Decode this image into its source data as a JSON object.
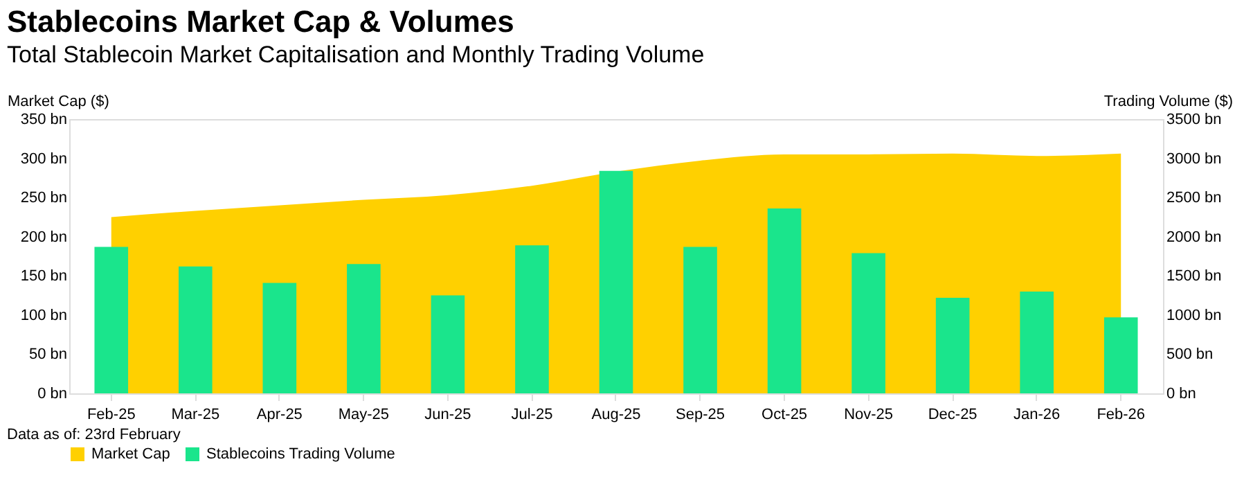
{
  "chart_data": {
    "type": "bar",
    "title": "Stablecoins Market Cap & Volumes",
    "subtitle": "Total Stablecoin Market Capitalisation and Monthly Trading Volume",
    "ylabel": "Market Cap ($)",
    "y2label": "Trading Volume ($)",
    "categories": [
      "Feb-25",
      "Mar-25",
      "Apr-25",
      "May-25",
      "Jun-25",
      "Jul-25",
      "Aug-25",
      "Sep-25",
      "Oct-25",
      "Nov-25",
      "Dec-25",
      "Jan-26",
      "Feb-26"
    ],
    "series": [
      {
        "name": "Market Cap",
        "type": "area",
        "color": "#ffd000",
        "values": [
          225,
          233,
          240,
          247,
          253,
          265,
          283,
          297,
          305,
          305,
          306,
          303,
          306
        ]
      },
      {
        "name": "Stablecoins Trading Volume",
        "axis": "y2",
        "color": "#1ae58c",
        "values": [
          1870,
          1620,
          1410,
          1650,
          1250,
          1890,
          2840,
          1870,
          2360,
          1790,
          1220,
          1300,
          970
        ]
      }
    ],
    "ylim": [
      0,
      350
    ],
    "yticks": [
      {
        "value": 0,
        "label": "0 bn"
      },
      {
        "value": 50,
        "label": "50 bn"
      },
      {
        "value": 100,
        "label": "100 bn"
      },
      {
        "value": 150,
        "label": "150 bn"
      },
      {
        "value": 200,
        "label": "200 bn"
      },
      {
        "value": 250,
        "label": "250 bn"
      },
      {
        "value": 300,
        "label": "300 bn"
      },
      {
        "value": 350,
        "label": "350 bn"
      }
    ],
    "y2lim": [
      0,
      3500
    ],
    "y2ticks": [
      {
        "value": 0,
        "label": "0 bn"
      },
      {
        "value": 500,
        "label": "500 bn"
      },
      {
        "value": 1000,
        "label": "1000 bn"
      },
      {
        "value": 1500,
        "label": "1500 bn"
      },
      {
        "value": 2000,
        "label": "2000 bn"
      },
      {
        "value": 2500,
        "label": "2500 bn"
      },
      {
        "value": 3000,
        "label": "3000 bn"
      },
      {
        "value": 3500,
        "label": "3500 bn"
      }
    ],
    "legend": "bottom",
    "grid": false,
    "annotations": [
      "Data as of: 23rd February"
    ]
  }
}
